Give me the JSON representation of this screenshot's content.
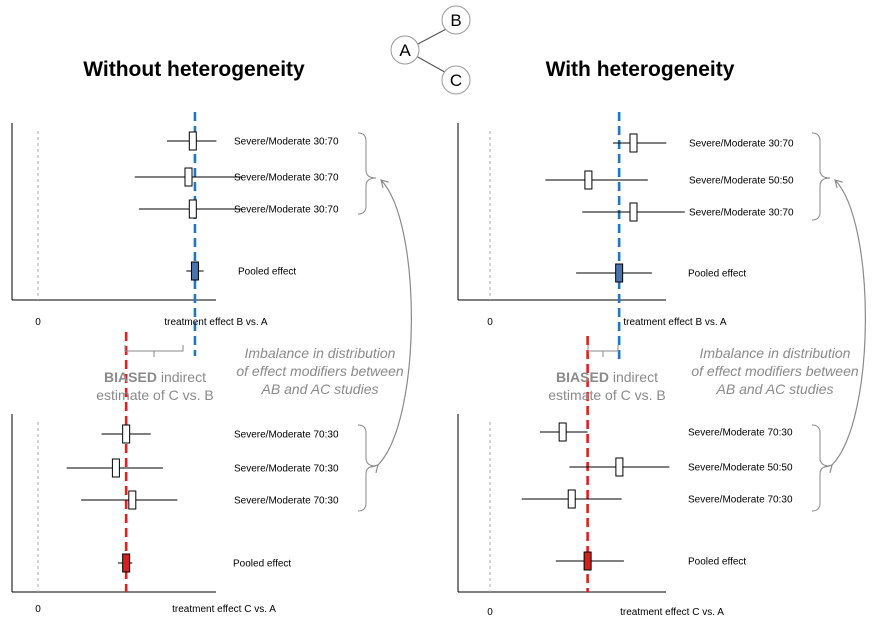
{
  "titles": {
    "left": "Without heterogeneity",
    "right": "With heterogeneity"
  },
  "network": {
    "nodes": [
      "A",
      "B",
      "C"
    ]
  },
  "axis_zero_label": "0",
  "colors": {
    "top_reference_line": "#1f77c4",
    "bottom_reference_line": "#e02020",
    "top_pooled_fill": "#4a72b0",
    "bottom_pooled_fill": "#d42020",
    "annotation_gray": "#8a8a8a"
  },
  "annotations": {
    "imbalance": [
      "Imbalance in distribution",
      "of effect modifiers between",
      "AB and AC studies"
    ],
    "biased_word": "BIASED",
    "biased_rest": " indirect",
    "biased_line2": "estimate of C vs. B"
  },
  "chart_data": [
    {
      "type": "forest",
      "panel": "left-top",
      "xlabel": "treatment effect B vs. A",
      "xlim": [
        0,
        10
      ],
      "reference_line": 7.3,
      "studies": [
        {
          "label": "Severe/Moderate 30:70",
          "estimate": 7.2,
          "ci": [
            6.0,
            8.3
          ]
        },
        {
          "label": "Severe/Moderate 30:70",
          "estimate": 7.0,
          "ci": [
            4.5,
            9.5
          ]
        },
        {
          "label": "Severe/Moderate 30:70",
          "estimate": 7.2,
          "ci": [
            4.7,
            9.5
          ]
        }
      ],
      "pooled": {
        "label": "Pooled effect",
        "estimate": 7.3,
        "ci": [
          6.9,
          7.7
        ]
      }
    },
    {
      "type": "forest",
      "panel": "left-bottom",
      "xlabel": "treatment effect C vs. A",
      "xlim": [
        0,
        10
      ],
      "reference_line": 4.3,
      "studies": [
        {
          "label": "Severe/Moderate 70:30",
          "estimate": 4.3,
          "ci": [
            3.1,
            5.5
          ]
        },
        {
          "label": "Severe/Moderate 70:30",
          "estimate": 3.8,
          "ci": [
            1.4,
            6.1
          ]
        },
        {
          "label": "Severe/Moderate 70:30",
          "estimate": 4.6,
          "ci": [
            2.1,
            6.8
          ]
        }
      ],
      "pooled": {
        "label": "Pooled effect",
        "estimate": 4.3,
        "ci": [
          3.9,
          4.6
        ]
      }
    },
    {
      "type": "forest",
      "panel": "right-top",
      "xlabel": "treatment effect B vs. A",
      "xlim": [
        0,
        10
      ],
      "reference_line": 6.3,
      "studies": [
        {
          "label": "Severe/Moderate 30:70",
          "estimate": 7.0,
          "ci": [
            6.0,
            8.6
          ]
        },
        {
          "label": "Severe/Moderate 50:50",
          "estimate": 4.8,
          "ci": [
            2.7,
            7.7
          ]
        },
        {
          "label": "Severe/Moderate 30:70",
          "estimate": 7.0,
          "ci": [
            4.5,
            9.5
          ]
        }
      ],
      "pooled": {
        "label": "Pooled effect",
        "estimate": 6.3,
        "ci": [
          4.2,
          7.9
        ]
      }
    },
    {
      "type": "forest",
      "panel": "right-bottom",
      "xlabel": "treatment effect C vs. A",
      "xlim": [
        0,
        10
      ],
      "reference_line": 4.3,
      "studies": [
        {
          "label": "Severe/Moderate 70:30",
          "estimate": 3.2,
          "ci": [
            2.2,
            4.3
          ]
        },
        {
          "label": "Severe/Moderate 50:50",
          "estimate": 5.7,
          "ci": [
            3.5,
            7.9
          ]
        },
        {
          "label": "Severe/Moderate 70:30",
          "estimate": 3.6,
          "ci": [
            1.4,
            5.8
          ]
        }
      ],
      "pooled": {
        "label": "Pooled effect",
        "estimate": 4.3,
        "ci": [
          2.9,
          5.9
        ]
      }
    }
  ]
}
